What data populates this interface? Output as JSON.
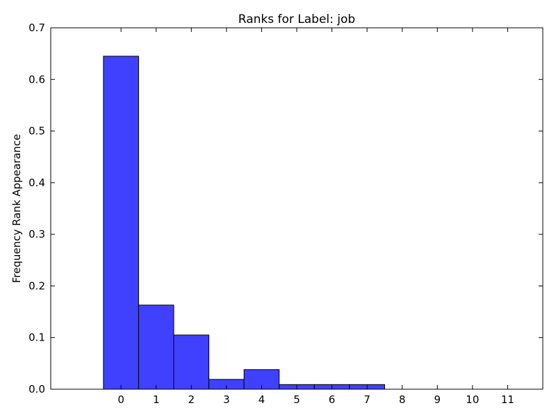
{
  "chart_data": {
    "type": "bar",
    "title": "Ranks for Label: job",
    "xlabel": "",
    "ylabel": "Frequency Rank Appearance",
    "categories": [
      "0",
      "1",
      "2",
      "3",
      "4",
      "5",
      "6",
      "7",
      "8",
      "9",
      "10",
      "11"
    ],
    "values": [
      0.645,
      0.163,
      0.105,
      0.019,
      0.038,
      0.009,
      0.009,
      0.009,
      0.0,
      0.0,
      0.0,
      0.0
    ],
    "ylim": [
      0,
      0.7
    ],
    "xlim": [
      -2,
      12
    ],
    "yticks": [
      "0.0",
      "0.1",
      "0.2",
      "0.3",
      "0.4",
      "0.5",
      "0.6",
      "0.7"
    ],
    "bar_color": "#4040ff",
    "grid": false,
    "legend": "none"
  }
}
